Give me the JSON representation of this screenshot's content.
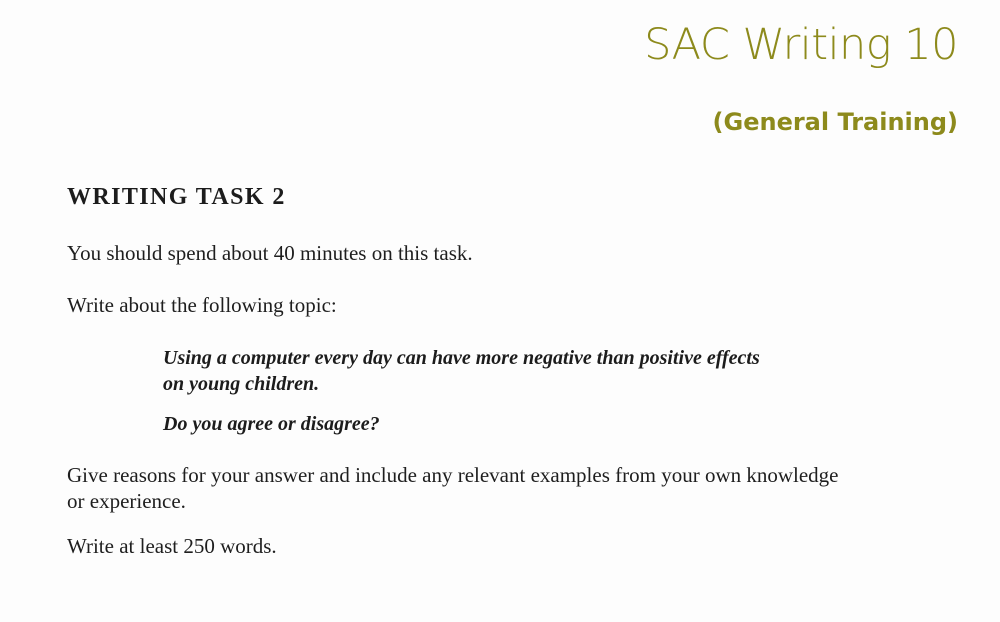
{
  "header": {
    "title": "SAC Writing 10",
    "subtitle": "(General Training)"
  },
  "task": {
    "heading": "WRITING TASK 2",
    "instruction": "You should spend about 40 minutes on this task.",
    "topic_intro": "Write about the following topic:",
    "prompt_lines": [
      "Using a computer every day can have more negative than positive effects",
      "on young children."
    ],
    "question": "Do you agree or disagree?",
    "answer_guidance_lines": [
      "Give reasons for your answer and include any relevant examples from your own knowledge",
      "or experience."
    ],
    "word_count": "Write at least 250 words."
  },
  "colors": {
    "brand": "#8d8a1c",
    "text": "#1e1e1e"
  }
}
